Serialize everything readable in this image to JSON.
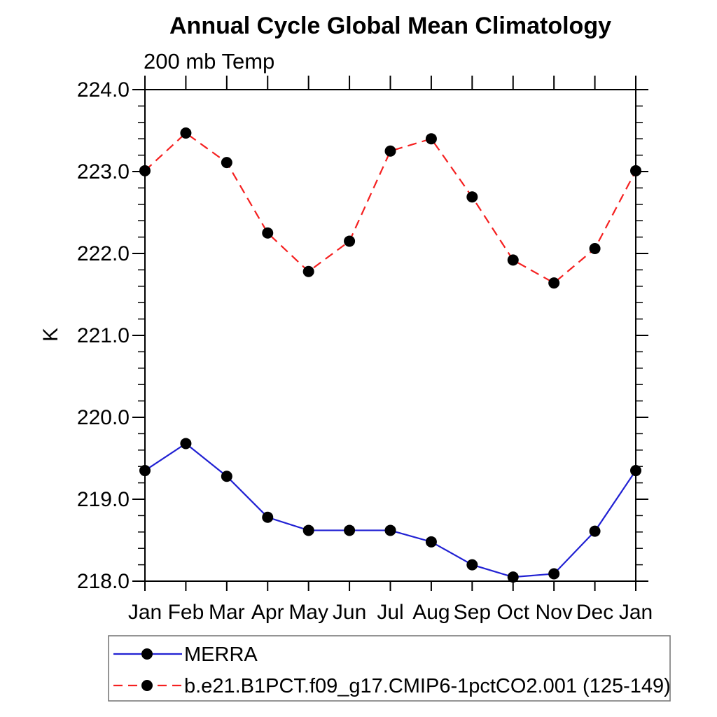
{
  "chart_data": {
    "type": "line",
    "title": "Annual Cycle Global Mean Climatology",
    "subtitle": "200 mb Temp",
    "ylabel": "K",
    "x_categories": [
      "Jan",
      "Feb",
      "Mar",
      "Apr",
      "May",
      "Jun",
      "Jul",
      "Aug",
      "Sep",
      "Oct",
      "Nov",
      "Dec",
      "Jan"
    ],
    "ylim": [
      218.0,
      224.0
    ],
    "ytick_major_step": 1.0,
    "ytick_minor_step": 0.2,
    "ytick_labels": [
      "218.0",
      "219.0",
      "220.0",
      "221.0",
      "222.0",
      "223.0",
      "224.0"
    ],
    "grid": false,
    "frame": "box-with-outward-ticks",
    "legend": {
      "position": "below-plot-left",
      "border_color": "#707070"
    },
    "series": [
      {
        "name": "MERRA",
        "line_color": "#2121d3",
        "line_style": "solid",
        "marker": "filled-circle",
        "marker_color": "#000000",
        "values": [
          219.35,
          219.68,
          219.28,
          218.78,
          218.62,
          218.62,
          218.62,
          218.48,
          218.2,
          218.05,
          218.09,
          218.61,
          219.35
        ]
      },
      {
        "name": "b.e21.B1PCT.f09_g17.CMIP6-1pctCO2.001 (125-149)",
        "line_color": "#f52020",
        "line_style": "dashed",
        "marker": "filled-circle",
        "marker_color": "#000000",
        "values": [
          223.01,
          223.47,
          223.11,
          222.25,
          221.78,
          222.15,
          223.25,
          223.4,
          222.69,
          221.92,
          221.64,
          222.06,
          223.01
        ]
      }
    ]
  }
}
